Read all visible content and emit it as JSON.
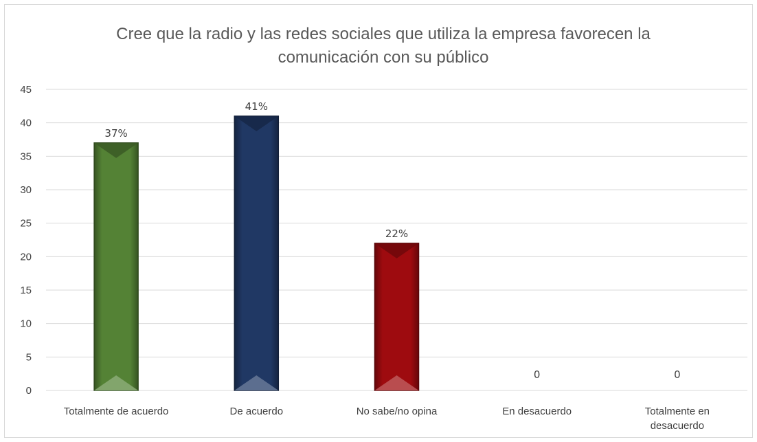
{
  "chart_data": {
    "type": "bar",
    "title": "Cree que la radio y las redes sociales que utiliza la empresa favorecen la comunicación con su público",
    "title_lines": [
      "Cree que la radio y las redes sociales que utiliza la empresa favorecen la",
      "comunicación con su público"
    ],
    "categories": [
      "Totalmente de acuerdo",
      "De acuerdo",
      "No sabe/no opina",
      "En desacuerdo",
      "Totalmente en desacuerdo"
    ],
    "category_lines": [
      [
        "Totalmente de acuerdo"
      ],
      [
        "De acuerdo"
      ],
      [
        "No sabe/no opina"
      ],
      [
        "En desacuerdo"
      ],
      [
        "Totalmente en",
        "desacuerdo"
      ]
    ],
    "values": [
      37,
      41,
      22,
      0,
      0
    ],
    "data_labels": [
      "37%",
      "41%",
      "22%",
      "0",
      "0"
    ],
    "bar_colors": [
      "#548235",
      "#203864",
      "#9e0b0f",
      "#7f7f7f",
      "#7f7f7f"
    ],
    "ylim": [
      0,
      45
    ],
    "yticks": [
      0,
      5,
      10,
      15,
      20,
      25,
      30,
      35,
      40,
      45
    ],
    "xlabel": "",
    "ylabel": "",
    "grid": true,
    "legend": "none"
  }
}
